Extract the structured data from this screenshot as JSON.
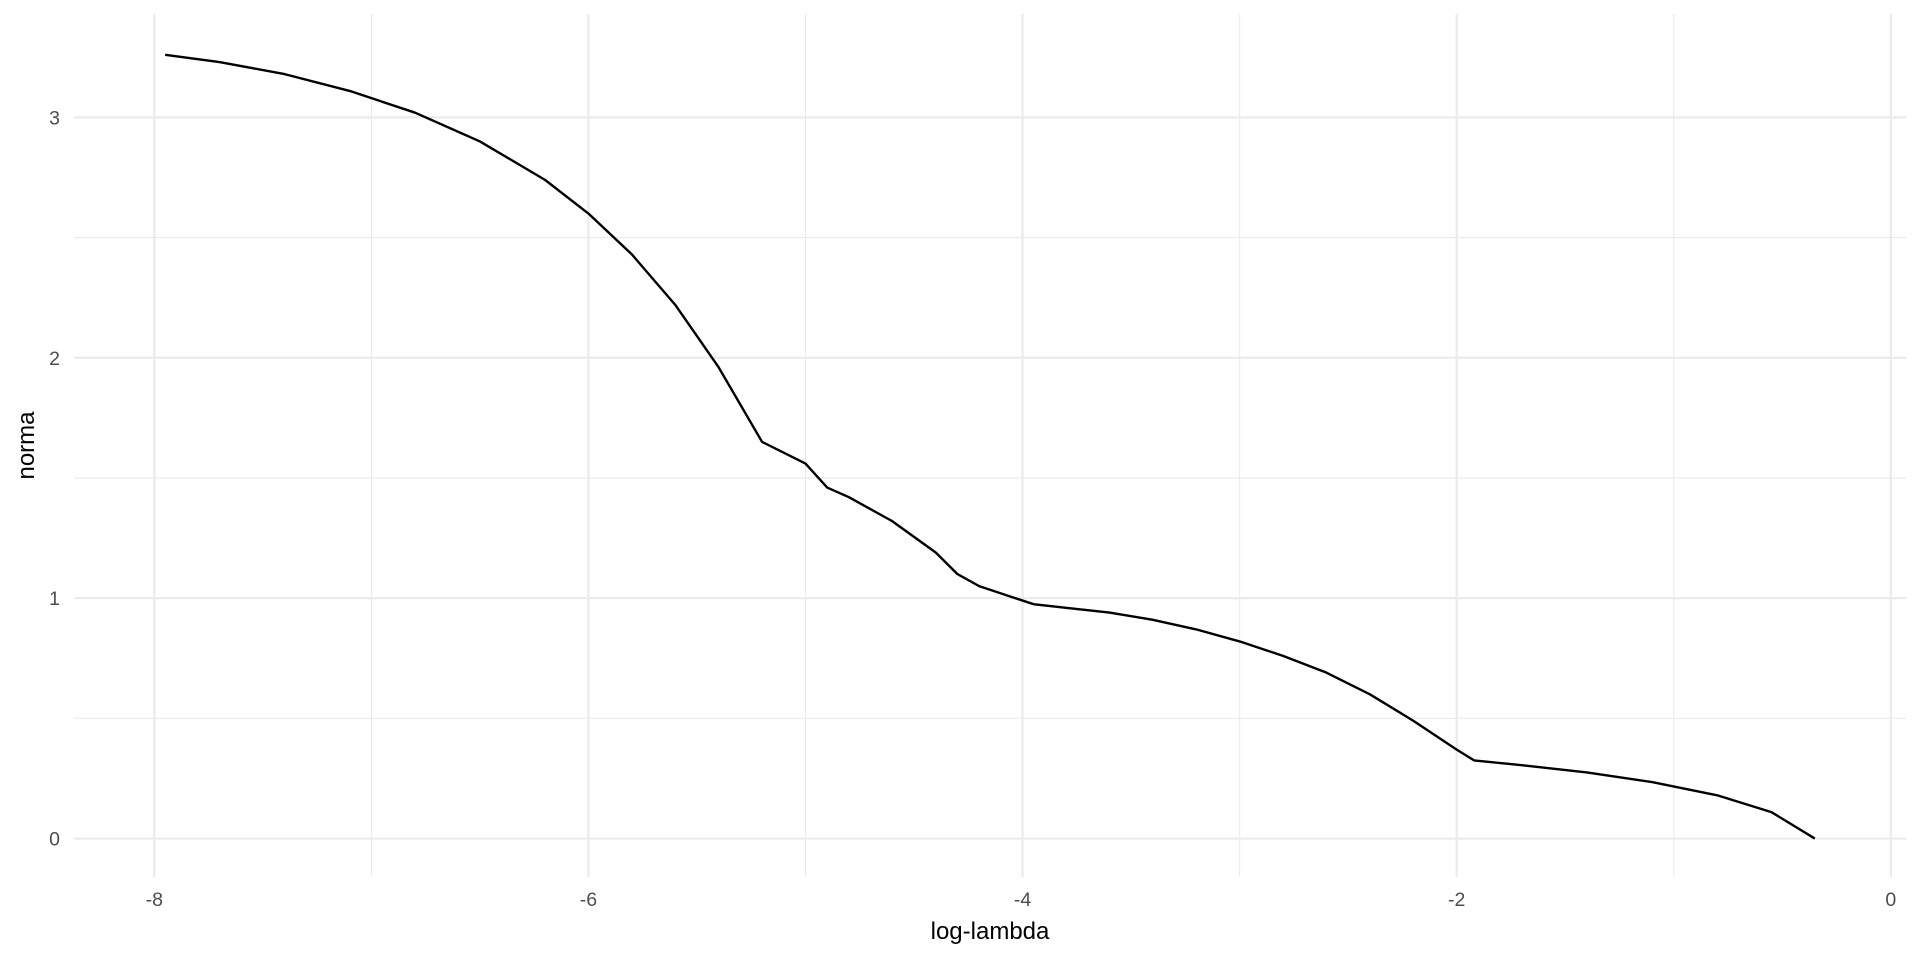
{
  "chart_data": {
    "type": "line",
    "title": "",
    "xlabel": "log-lambda",
    "ylabel": "norma",
    "xlim": [
      -8.37,
      0.07
    ],
    "ylim": [
      -0.16,
      3.43
    ],
    "x_ticks": [
      -8,
      -6,
      -4,
      -2,
      0
    ],
    "x_tick_labels": [
      "-8",
      "-6",
      "-4",
      "-2",
      "0"
    ],
    "x_minor_ticks": [
      -7,
      -5,
      -3,
      -1
    ],
    "y_ticks": [
      0,
      1,
      2,
      3
    ],
    "y_tick_labels": [
      "0",
      "1",
      "2",
      "3"
    ],
    "y_minor_ticks": [
      0.5,
      1.5,
      2.5
    ],
    "grid": true,
    "line_color": "#000000",
    "grid_color": "#ebebeb",
    "series": [
      {
        "x": [
          -7.95,
          -7.7,
          -7.4,
          -7.1,
          -6.8,
          -6.5,
          -6.2,
          -6.0,
          -5.8,
          -5.6,
          -5.4,
          -5.2,
          -5.0,
          -4.9,
          -4.8,
          -4.6,
          -4.4,
          -4.3,
          -4.2,
          -4.1,
          -4.0,
          -3.95,
          -3.8,
          -3.6,
          -3.4,
          -3.2,
          -3.0,
          -2.8,
          -2.6,
          -2.4,
          -2.2,
          -2.0,
          -1.92,
          -1.7,
          -1.4,
          -1.1,
          -0.8,
          -0.55,
          -0.35
        ],
        "y": [
          3.26,
          3.23,
          3.18,
          3.11,
          3.02,
          2.9,
          2.74,
          2.6,
          2.43,
          2.22,
          1.96,
          1.65,
          1.56,
          1.46,
          1.42,
          1.32,
          1.19,
          1.1,
          1.05,
          1.02,
          0.99,
          0.975,
          0.96,
          0.94,
          0.91,
          0.87,
          0.82,
          0.76,
          0.69,
          0.6,
          0.49,
          0.37,
          0.325,
          0.305,
          0.275,
          0.235,
          0.18,
          0.11,
          0.0
        ]
      }
    ]
  }
}
